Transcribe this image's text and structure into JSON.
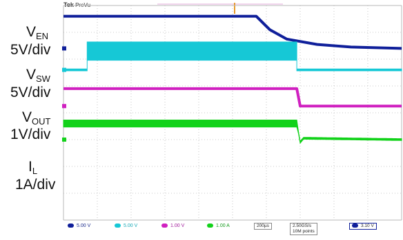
{
  "brand": {
    "name": "Tek",
    "mode": "PreVu"
  },
  "colors": {
    "ch1": "#0f1f9a",
    "ch2": "#16c8d6",
    "ch3": "#d020c0",
    "ch4": "#12d21a",
    "grid": "#b8b8b8"
  },
  "labels": [
    {
      "main": "V",
      "sub": "EN",
      "scale": "5V/div"
    },
    {
      "main": "V",
      "sub": "SW",
      "scale": "5V/div"
    },
    {
      "main": "V",
      "sub": "OUT",
      "scale": "1V/div"
    },
    {
      "main": "I",
      "sub": "L",
      "scale": "1A/div"
    }
  ],
  "status": {
    "ch1": "5.00 V",
    "ch2": "5.00 V",
    "ch3": "1.00 V",
    "ch4": "1.00 A",
    "timebase": "200µs",
    "rate": "2.50GS/s",
    "points": "10M points",
    "trigger": "3.10 V"
  },
  "chart_data": {
    "type": "line",
    "title": "",
    "xlabel": "",
    "ylabel": "",
    "x_units": "divisions",
    "xlim": [
      0,
      10
    ],
    "grid": true,
    "series": [
      {
        "channel": "ch1",
        "points": [
          [
            0,
            3.6
          ],
          [
            5.7,
            3.6
          ],
          [
            6.1,
            3.1
          ],
          [
            6.6,
            2.75
          ],
          [
            7.5,
            2.55
          ],
          [
            8.5,
            2.45
          ],
          [
            10,
            2.4
          ]
        ]
      },
      {
        "channel": "ch2",
        "noise_band": true,
        "points": [
          [
            0,
            1.6
          ],
          [
            0.7,
            1.6
          ],
          [
            0.7,
            2.3
          ],
          [
            6.9,
            2.3
          ],
          [
            6.9,
            1.6
          ],
          [
            10,
            1.6
          ]
        ]
      },
      {
        "channel": "ch3",
        "points": [
          [
            0,
            0.9
          ],
          [
            6.9,
            0.9
          ],
          [
            7.0,
            0.25
          ],
          [
            10,
            0.25
          ]
        ]
      },
      {
        "channel": "ch4",
        "noise_band": true,
        "points": [
          [
            0,
            -0.4
          ],
          [
            6.9,
            -0.4
          ],
          [
            7.0,
            -1.1
          ],
          [
            7.1,
            -0.95
          ],
          [
            10,
            -1.0
          ]
        ]
      }
    ]
  }
}
